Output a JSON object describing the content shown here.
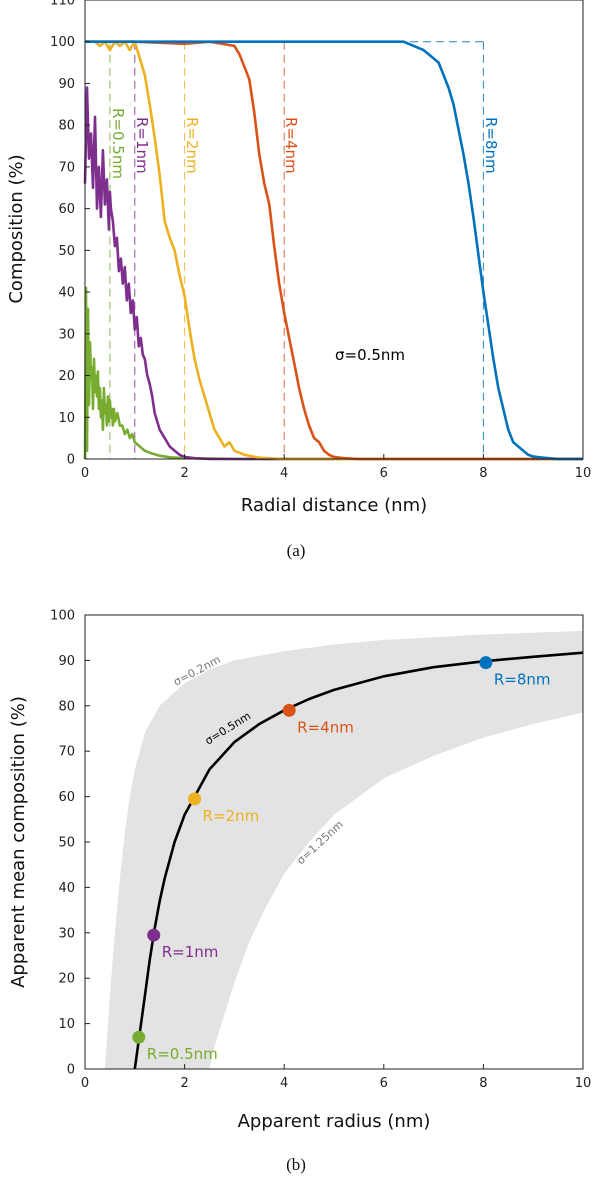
{
  "colors": {
    "green": "#77AC30",
    "purple": "#7E2F8E",
    "yellow": "#EDB120",
    "orange": "#D95319",
    "blue": "#0072BD",
    "band": "#E3E3E3",
    "fit": "#000000"
  },
  "chart_data": [
    {
      "type": "line",
      "panel_label": "(a)",
      "xlabel": "Radial distance (nm)",
      "ylabel": "Composition (%)",
      "xlim": [
        0,
        10
      ],
      "ylim": [
        0,
        110
      ],
      "xticks": [
        "0",
        "2",
        "4",
        "6",
        "8",
        "10"
      ],
      "yticks": [
        "0",
        "10",
        "20",
        "30",
        "40",
        "50",
        "60",
        "70",
        "80",
        "90",
        "100",
        "110"
      ],
      "grid": false,
      "annotation": "σ=0.5nm",
      "series": [
        {
          "name": "R=0.5nm",
          "color": "green",
          "radius": 0.5,
          "x": [
            0.0,
            0.02,
            0.04,
            0.06,
            0.08,
            0.1,
            0.12,
            0.14,
            0.16,
            0.18,
            0.2,
            0.22,
            0.24,
            0.26,
            0.28,
            0.3,
            0.32,
            0.34,
            0.36,
            0.38,
            0.4,
            0.42,
            0.44,
            0.46,
            0.48,
            0.5,
            0.52,
            0.54,
            0.56,
            0.58,
            0.6,
            0.65,
            0.7,
            0.75,
            0.8,
            0.85,
            0.9,
            0.95,
            1.0,
            1.1,
            1.2,
            1.3,
            1.5,
            1.7,
            2.0,
            2.5,
            3.0,
            10.0
          ],
          "y": [
            0,
            41,
            2,
            36,
            13,
            28,
            19,
            22,
            12,
            24,
            16,
            20,
            15,
            21,
            12,
            17,
            10,
            14,
            7,
            17,
            11,
            13,
            8,
            15,
            9,
            14,
            10,
            12,
            8,
            12,
            9,
            11,
            8,
            8,
            6,
            7,
            5,
            6,
            4,
            3,
            2,
            1.5,
            0.8,
            0.4,
            0.2,
            0.1,
            0,
            0
          ]
        },
        {
          "name": "R=1nm",
          "color": "purple",
          "radius": 1,
          "x": [
            0.0,
            0.04,
            0.08,
            0.12,
            0.16,
            0.2,
            0.24,
            0.28,
            0.32,
            0.36,
            0.4,
            0.44,
            0.48,
            0.5,
            0.52,
            0.56,
            0.6,
            0.64,
            0.68,
            0.72,
            0.76,
            0.8,
            0.84,
            0.88,
            0.92,
            0.96,
            1.0,
            1.04,
            1.08,
            1.12,
            1.16,
            1.2,
            1.25,
            1.3,
            1.35,
            1.4,
            1.45,
            1.5,
            1.6,
            1.7,
            1.8,
            1.9,
            2.0,
            2.2,
            2.5,
            5.0
          ],
          "y": [
            66,
            89,
            72,
            78,
            65,
            82,
            60,
            70,
            58,
            74,
            61,
            67,
            55,
            64,
            60,
            57,
            51,
            53,
            45,
            48,
            42,
            46,
            38,
            42,
            35,
            38,
            31,
            34,
            27,
            29,
            25,
            24,
            20,
            18,
            15,
            11,
            9,
            7,
            5,
            3,
            2,
            1,
            0.5,
            0.2,
            0,
            0
          ]
        },
        {
          "name": "R=2nm",
          "color": "yellow",
          "radius": 2,
          "x": [
            0.0,
            0.2,
            0.3,
            0.4,
            0.5,
            0.6,
            0.7,
            0.8,
            0.9,
            1.0,
            1.05,
            1.1,
            1.2,
            1.3,
            1.4,
            1.5,
            1.6,
            1.7,
            1.8,
            1.9,
            2.0,
            2.1,
            2.2,
            2.3,
            2.4,
            2.5,
            2.6,
            2.7,
            2.8,
            2.9,
            3.0,
            3.2,
            3.5,
            4.0,
            10.0
          ],
          "y": [
            100,
            100,
            99,
            100,
            98,
            100,
            99,
            100,
            98,
            100,
            98,
            96,
            92,
            85,
            77,
            68,
            57,
            53,
            50,
            44,
            39,
            31,
            24,
            19,
            15,
            11,
            7,
            5,
            3,
            4,
            2,
            1,
            0.3,
            0,
            0
          ]
        },
        {
          "name": "R=4nm",
          "color": "orange",
          "radius": 4,
          "x": [
            0.0,
            1.0,
            2.0,
            2.5,
            3.0,
            3.1,
            3.2,
            3.3,
            3.4,
            3.5,
            3.6,
            3.7,
            3.8,
            3.9,
            4.0,
            4.1,
            4.2,
            4.3,
            4.4,
            4.5,
            4.6,
            4.7,
            4.8,
            4.9,
            5.0,
            5.2,
            5.5,
            6.0,
            10.0
          ],
          "y": [
            100,
            100,
            99.5,
            100,
            99,
            97,
            94,
            91,
            83,
            73,
            66,
            61,
            51,
            42,
            35,
            29,
            23,
            17,
            12,
            8,
            5,
            4,
            2,
            1,
            0.5,
            0.2,
            0,
            0,
            0
          ]
        },
        {
          "name": "R=8nm",
          "color": "blue",
          "radius": 8,
          "x": [
            0.0,
            6.0,
            6.4,
            6.6,
            6.8,
            7.0,
            7.1,
            7.2,
            7.3,
            7.4,
            7.5,
            7.6,
            7.7,
            7.8,
            7.9,
            8.0,
            8.1,
            8.2,
            8.3,
            8.4,
            8.5,
            8.6,
            8.7,
            8.8,
            8.9,
            9.0,
            9.2,
            9.5,
            10.0
          ],
          "y": [
            100,
            100,
            100,
            99,
            98,
            96,
            95,
            92,
            89,
            85,
            79,
            73,
            66,
            58,
            49,
            40,
            32,
            24,
            17,
            12,
            7,
            4,
            3,
            2,
            1,
            0.6,
            0.3,
            0,
            0
          ]
        }
      ]
    },
    {
      "type": "line",
      "panel_label": "(b)",
      "xlabel": "Apparent radius (nm)",
      "ylabel": "Apparent mean composition (%)",
      "xlim": [
        0,
        10
      ],
      "ylim": [
        0,
        100
      ],
      "xticks": [
        "0",
        "2",
        "4",
        "6",
        "8",
        "10"
      ],
      "yticks": [
        "0",
        "10",
        "20",
        "30",
        "40",
        "50",
        "60",
        "70",
        "80",
        "90",
        "100"
      ],
      "grid": false,
      "band_labels": [
        "σ=0.2nm",
        "σ=1.25nm"
      ],
      "band_upper": {
        "x": [
          0.4,
          0.45,
          0.5,
          0.6,
          0.7,
          0.8,
          0.9,
          1.0,
          1.2,
          1.5,
          2.0,
          2.5,
          3.0,
          4.0,
          5.0,
          6.0,
          8.0,
          10.0
        ],
        "y": [
          0,
          8,
          16,
          30,
          42,
          52,
          60,
          66,
          74,
          80,
          85,
          88,
          90,
          92,
          93.5,
          94.5,
          95.7,
          96.5
        ]
      },
      "band_lower": {
        "x": [
          2.5,
          2.6,
          2.8,
          3.0,
          3.3,
          3.6,
          4.0,
          4.5,
          5.0,
          6.0,
          7.0,
          8.0,
          9.0,
          10.0
        ],
        "y": [
          0,
          5,
          12,
          19,
          28,
          35,
          43,
          50,
          56,
          64,
          69,
          73,
          76,
          78.5
        ]
      },
      "series": [
        {
          "name": "σ=0.5nm",
          "color": "fit",
          "x": [
            1.0,
            1.05,
            1.1,
            1.2,
            1.3,
            1.4,
            1.5,
            1.6,
            1.8,
            2.0,
            2.2,
            2.5,
            3.0,
            3.5,
            4.0,
            4.5,
            5.0,
            6.0,
            7.0,
            8.0,
            9.0,
            10.0
          ],
          "y": [
            0,
            4,
            8,
            16,
            24,
            31,
            37,
            42,
            50,
            56,
            60,
            66,
            72,
            76,
            79,
            81.5,
            83.5,
            86.5,
            88.5,
            89.8,
            90.8,
            91.7
          ]
        }
      ],
      "points": [
        {
          "label": "R=0.5nm",
          "color": "green",
          "x": 1.08,
          "y": 7
        },
        {
          "label": "R=1nm",
          "color": "purple",
          "x": 1.38,
          "y": 29.5
        },
        {
          "label": "R=2nm",
          "color": "yellow",
          "x": 2.2,
          "y": 59.5
        },
        {
          "label": "R=4nm",
          "color": "orange",
          "x": 4.1,
          "y": 79
        },
        {
          "label": "R=8nm",
          "color": "blue",
          "x": 8.05,
          "y": 89.5
        }
      ]
    }
  ]
}
